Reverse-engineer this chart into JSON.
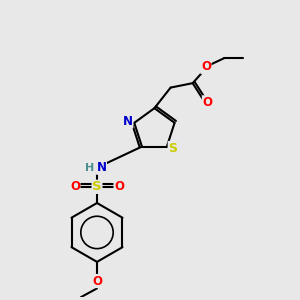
{
  "bg_color": "#e8e8e8",
  "bond_color": "#000000",
  "bond_width": 1.5,
  "atom_colors": {
    "N": "#0000cc",
    "S_thiazole": "#cccc00",
    "S_sulfonyl": "#cccc00",
    "O": "#ff0000",
    "H": "#4a8f8f",
    "C": "#000000"
  },
  "font_size": 8.5,
  "fig_size": [
    3.0,
    3.0
  ],
  "dpi": 100
}
